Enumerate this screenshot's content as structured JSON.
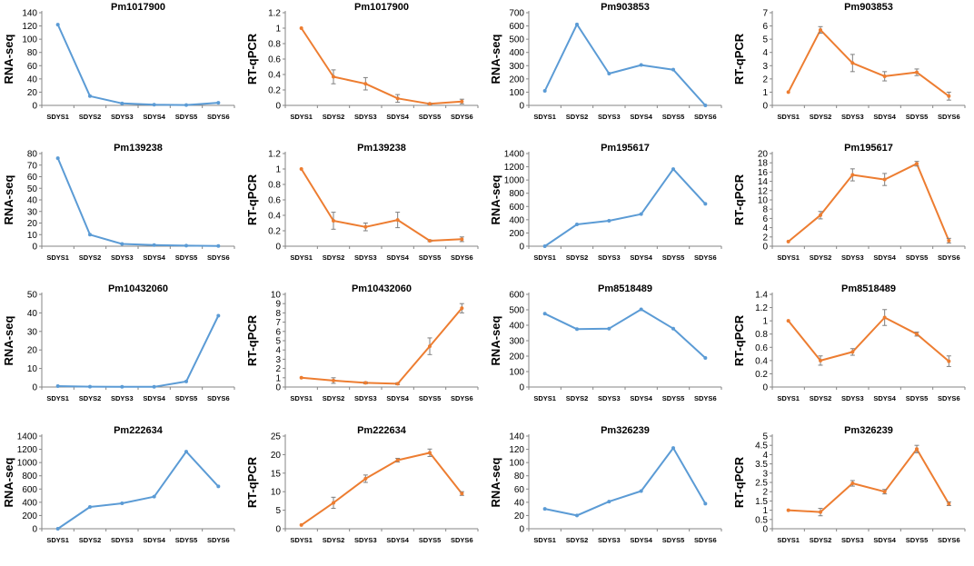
{
  "colors": {
    "rna": "#5b9bd5",
    "qpcr": "#ed7d31",
    "axis": "#868686",
    "err": "#7f7f7f"
  },
  "chart_data": [
    {
      "type": "line",
      "title": "Pm1017900",
      "ylabel": "RNA-seq",
      "categories": [
        "SDYS1",
        "SDYS2",
        "SDYS3",
        "SDYS4",
        "SDYS5",
        "SDYS6"
      ],
      "values": [
        122,
        14,
        3,
        1,
        0.5,
        4
      ],
      "ylim": [
        0,
        140
      ],
      "yticks": [
        "0",
        "20",
        "40",
        "60",
        "80",
        "100",
        "120",
        "140"
      ]
    },
    {
      "type": "line",
      "title": "Pm1017900",
      "ylabel": "RT-qPCR",
      "categories": [
        "SDYS1",
        "SDYS2",
        "SDYS3",
        "SDYS4",
        "SDYS5",
        "SDYS6"
      ],
      "values": [
        1,
        0.37,
        0.28,
        0.09,
        0.02,
        0.05
      ],
      "errors": [
        0,
        0.09,
        0.08,
        0.05,
        0.01,
        0.03
      ],
      "ylim": [
        0,
        1.2
      ],
      "yticks": [
        "0",
        "0.2",
        "0.4",
        "0.6",
        "0.8",
        "1",
        "1.2"
      ]
    },
    {
      "type": "line",
      "title": "Pm903853",
      "ylabel": "RNA-seq",
      "categories": [
        "SDYS1",
        "SDYS2",
        "SDYS3",
        "SDYS4",
        "SDYS5",
        "SDYS6"
      ],
      "values": [
        110,
        612,
        240,
        305,
        270,
        0
      ],
      "ylim": [
        0,
        700
      ],
      "yticks": [
        "0",
        "100",
        "200",
        "300",
        "400",
        "500",
        "600",
        "700"
      ]
    },
    {
      "type": "line",
      "title": "Pm903853",
      "ylabel": "RT-qPCR",
      "categories": [
        "SDYS1",
        "SDYS2",
        "SDYS3",
        "SDYS4",
        "SDYS5",
        "SDYS6"
      ],
      "values": [
        1,
        5.7,
        3.2,
        2.2,
        2.5,
        0.7
      ],
      "errors": [
        0,
        0.25,
        0.65,
        0.35,
        0.25,
        0.3
      ],
      "ylim": [
        0,
        7
      ],
      "yticks": [
        "0",
        "1",
        "2",
        "3",
        "4",
        "5",
        "6",
        "7"
      ]
    },
    {
      "type": "line",
      "title": "Pm139238",
      "ylabel": "RNA-seq",
      "categories": [
        "SDYS1",
        "SDYS2",
        "SDYS3",
        "SDYS4",
        "SDYS5",
        "SDYS6"
      ],
      "values": [
        76,
        10,
        2,
        1,
        0.5,
        0.2
      ],
      "ylim": [
        0,
        80
      ],
      "yticks": [
        "0",
        "10",
        "20",
        "30",
        "40",
        "50",
        "60",
        "70",
        "80"
      ]
    },
    {
      "type": "line",
      "title": "Pm139238",
      "ylabel": "RT-qPCR",
      "categories": [
        "SDYS1",
        "SDYS2",
        "SDYS3",
        "SDYS4",
        "SDYS5",
        "SDYS6"
      ],
      "values": [
        1,
        0.33,
        0.25,
        0.34,
        0.07,
        0.09
      ],
      "errors": [
        0,
        0.11,
        0.05,
        0.1,
        0.01,
        0.03
      ],
      "ylim": [
        0,
        1.2
      ],
      "yticks": [
        "0",
        "0.2",
        "0.4",
        "0.6",
        "0.8",
        "1",
        "1.2"
      ]
    },
    {
      "type": "line",
      "title": "Pm195617",
      "ylabel": "RNA-seq",
      "categories": [
        "SDYS1",
        "SDYS2",
        "SDYS3",
        "SDYS4",
        "SDYS5",
        "SDYS6"
      ],
      "values": [
        0,
        330,
        385,
        485,
        1165,
        640
      ],
      "ylim": [
        0,
        1400
      ],
      "yticks": [
        "0",
        "200",
        "400",
        "600",
        "800",
        "1000",
        "1200",
        "1400"
      ]
    },
    {
      "type": "line",
      "title": "Pm195617",
      "ylabel": "RT-qPCR",
      "categories": [
        "SDYS1",
        "SDYS2",
        "SDYS3",
        "SDYS4",
        "SDYS5",
        "SDYS6"
      ],
      "values": [
        1,
        6.7,
        15.4,
        14.4,
        17.8,
        1.2
      ],
      "errors": [
        0,
        0.8,
        1.3,
        1.3,
        0.5,
        0.5
      ],
      "ylim": [
        0,
        20
      ],
      "yticks": [
        "0",
        "2",
        "4",
        "6",
        "8",
        "10",
        "12",
        "14",
        "16",
        "18",
        "20"
      ]
    },
    {
      "type": "line",
      "title": "Pm10432060",
      "ylabel": "RNA-seq",
      "categories": [
        "SDYS1",
        "SDYS2",
        "SDYS3",
        "SDYS4",
        "SDYS5",
        "SDYS6"
      ],
      "values": [
        0.5,
        0.2,
        0.1,
        0.1,
        3,
        38.5
      ],
      "ylim": [
        0,
        50
      ],
      "yticks": [
        "0",
        "10",
        "20",
        "30",
        "40",
        "50"
      ]
    },
    {
      "type": "line",
      "title": "Pm10432060",
      "ylabel": "RT-qPCR",
      "categories": [
        "SDYS1",
        "SDYS2",
        "SDYS3",
        "SDYS4",
        "SDYS5",
        "SDYS6"
      ],
      "values": [
        1,
        0.7,
        0.45,
        0.35,
        4.4,
        8.5
      ],
      "errors": [
        0,
        0.3,
        0.1,
        0.1,
        0.9,
        0.5
      ],
      "ylim": [
        0,
        10
      ],
      "yticks": [
        "0",
        "1",
        "2",
        "3",
        "4",
        "5",
        "6",
        "7",
        "8",
        "9",
        "10"
      ]
    },
    {
      "type": "line",
      "title": "Pm8518489",
      "ylabel": "RNA-seq",
      "categories": [
        "SDYS1",
        "SDYS2",
        "SDYS3",
        "SDYS4",
        "SDYS5",
        "SDYS6"
      ],
      "values": [
        475,
        375,
        378,
        503,
        378,
        188
      ],
      "ylim": [
        0,
        600
      ],
      "yticks": [
        "0",
        "100",
        "200",
        "300",
        "400",
        "500",
        "600"
      ]
    },
    {
      "type": "line",
      "title": "Pm8518489",
      "ylabel": "RT-qPCR",
      "categories": [
        "SDYS1",
        "SDYS2",
        "SDYS3",
        "SDYS4",
        "SDYS5",
        "SDYS6"
      ],
      "values": [
        1,
        0.4,
        0.53,
        1.05,
        0.8,
        0.39
      ],
      "errors": [
        0,
        0.07,
        0.05,
        0.12,
        0.03,
        0.08
      ],
      "ylim": [
        0,
        1.4
      ],
      "yticks": [
        "0",
        "0.2",
        "0.4",
        "0.6",
        "0.8",
        "1",
        "1.2",
        "1.4"
      ]
    },
    {
      "type": "line",
      "title": "Pm222634",
      "ylabel": "RNA-seq",
      "categories": [
        "SDYS1",
        "SDYS2",
        "SDYS3",
        "SDYS4",
        "SDYS5",
        "SDYS6"
      ],
      "values": [
        0,
        330,
        385,
        485,
        1165,
        640
      ],
      "ylim": [
        0,
        1400
      ],
      "yticks": [
        "0",
        "200",
        "400",
        "600",
        "800",
        "1000",
        "1200",
        "1400"
      ]
    },
    {
      "type": "line",
      "title": "Pm222634",
      "ylabel": "RT-qPCR",
      "categories": [
        "SDYS1",
        "SDYS2",
        "SDYS3",
        "SDYS4",
        "SDYS5",
        "SDYS6"
      ],
      "values": [
        1,
        7,
        13.5,
        18.5,
        20.5,
        9.5
      ],
      "errors": [
        0,
        1.5,
        1,
        0.5,
        1,
        0.5
      ],
      "ylim": [
        0,
        25
      ],
      "yticks": [
        "0",
        "5",
        "10",
        "15",
        "20",
        "25"
      ]
    },
    {
      "type": "line",
      "title": "Pm326239",
      "ylabel": "RNA-seq",
      "categories": [
        "SDYS1",
        "SDYS2",
        "SDYS3",
        "SDYS4",
        "SDYS5",
        "SDYS6"
      ],
      "values": [
        30,
        20,
        41,
        57,
        122,
        38
      ],
      "ylim": [
        0,
        140
      ],
      "yticks": [
        "0",
        "20",
        "40",
        "60",
        "80",
        "100",
        "120",
        "140"
      ]
    },
    {
      "type": "line",
      "title": "Pm326239",
      "ylabel": "RT-qPCR",
      "categories": [
        "SDYS1",
        "SDYS2",
        "SDYS3",
        "SDYS4",
        "SDYS5",
        "SDYS6"
      ],
      "values": [
        1,
        0.9,
        2.45,
        2.0,
        4.3,
        1.35
      ],
      "errors": [
        0,
        0.2,
        0.15,
        0.12,
        0.2,
        0.1
      ],
      "ylim": [
        0,
        5
      ],
      "yticks": [
        "0",
        "0.5",
        "1",
        "1.5",
        "2",
        "2.5",
        "3",
        "3.5",
        "4",
        "4.5",
        "5"
      ]
    }
  ]
}
